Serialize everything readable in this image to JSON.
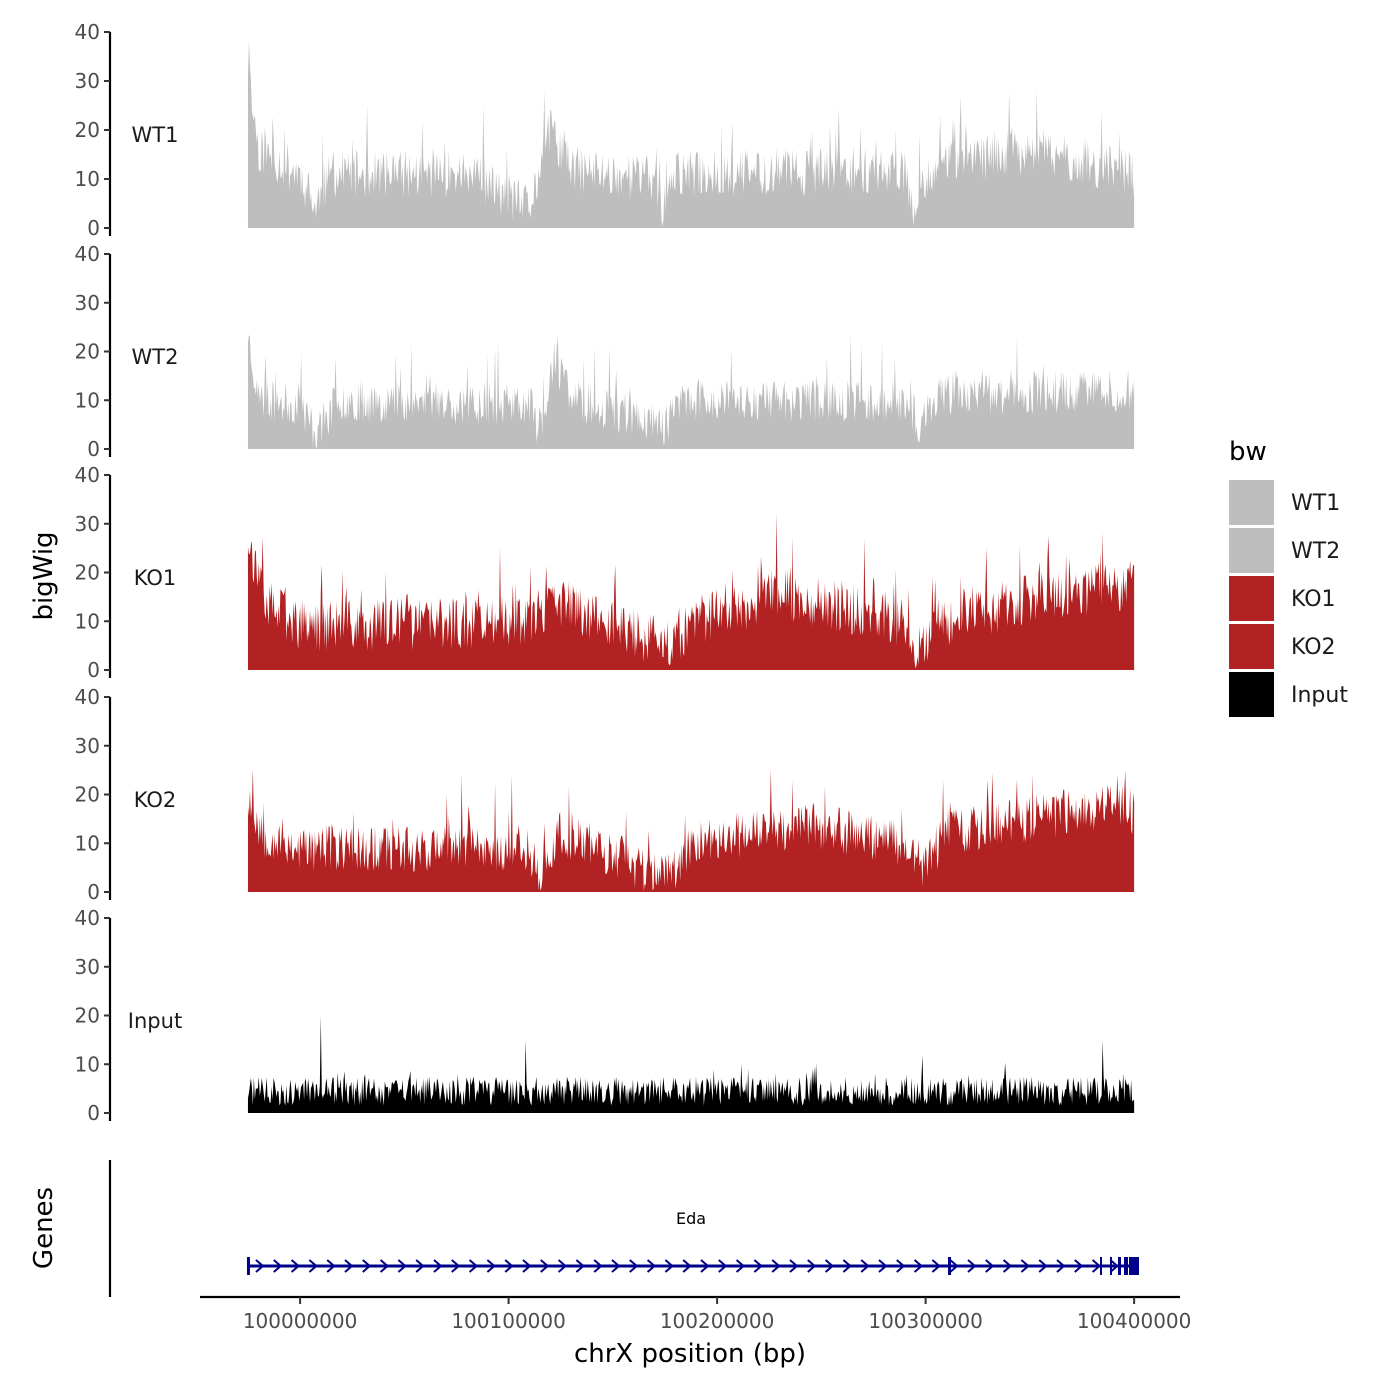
{
  "chart_data": {
    "type": "area",
    "title": "",
    "ylabel": "bigWig",
    "xlabel": "chrX position (bp)",
    "genes_ylabel": "Genes",
    "x_ticks": [
      100000000,
      100100000,
      100200000,
      100300000,
      100400000
    ],
    "x_tick_labels": [
      "100000000",
      "100100000",
      "100200000",
      "100300000",
      "100400000"
    ],
    "xlim": [
      99952000,
      100422000
    ],
    "data_xrange": [
      99975000,
      100400000
    ],
    "ylim": [
      0,
      40
    ],
    "y_ticks": [
      0,
      10,
      20,
      30,
      40
    ],
    "y_tick_labels": [
      "0",
      "10",
      "20",
      "30",
      "40"
    ],
    "legend": {
      "title": "bw",
      "placement": "right",
      "entries": [
        {
          "label": "WT1",
          "color": "#bebebe"
        },
        {
          "label": "WT2",
          "color": "#bebebe"
        },
        {
          "label": "KO1",
          "color": "#b22222"
        },
        {
          "label": "KO2",
          "color": "#b22222"
        },
        {
          "label": "Input",
          "color": "#000000"
        }
      ]
    },
    "series": [
      {
        "name": "WT1",
        "color": "#bebebe",
        "base": 11,
        "amp": 9,
        "seed": 11,
        "profile": [
          {
            "x": 99975000,
            "v": 33
          },
          {
            "x": 99980000,
            "v": 16
          },
          {
            "x": 100000000,
            "v": 11
          },
          {
            "x": 100007000,
            "v": 4
          },
          {
            "x": 100015000,
            "v": 11
          },
          {
            "x": 100080000,
            "v": 11
          },
          {
            "x": 100110000,
            "v": 4
          },
          {
            "x": 100120000,
            "v": 20
          },
          {
            "x": 100130000,
            "v": 12
          },
          {
            "x": 100170000,
            "v": 10
          },
          {
            "x": 100174000,
            "v": 4
          },
          {
            "x": 100180000,
            "v": 11
          },
          {
            "x": 100290000,
            "v": 12
          },
          {
            "x": 100295000,
            "v": 3
          },
          {
            "x": 100302000,
            "v": 12
          },
          {
            "x": 100350000,
            "v": 16
          },
          {
            "x": 100400000,
            "v": 11
          }
        ]
      },
      {
        "name": "WT2",
        "color": "#bebebe",
        "base": 10,
        "amp": 8,
        "seed": 23,
        "profile": [
          {
            "x": 99975000,
            "v": 24
          },
          {
            "x": 99980000,
            "v": 10
          },
          {
            "x": 100000000,
            "v": 9
          },
          {
            "x": 100008000,
            "v": 3
          },
          {
            "x": 100018000,
            "v": 10
          },
          {
            "x": 100110000,
            "v": 9
          },
          {
            "x": 100115000,
            "v": 4
          },
          {
            "x": 100122000,
            "v": 18
          },
          {
            "x": 100132000,
            "v": 10
          },
          {
            "x": 100175000,
            "v": 5
          },
          {
            "x": 100185000,
            "v": 10
          },
          {
            "x": 100290000,
            "v": 10
          },
          {
            "x": 100296000,
            "v": 3
          },
          {
            "x": 100305000,
            "v": 11
          },
          {
            "x": 100400000,
            "v": 12
          }
        ]
      },
      {
        "name": "KO1",
        "color": "#b22222",
        "base": 10,
        "amp": 10,
        "seed": 37,
        "profile": [
          {
            "x": 99975000,
            "v": 28
          },
          {
            "x": 99982000,
            "v": 14
          },
          {
            "x": 100000000,
            "v": 9
          },
          {
            "x": 100110000,
            "v": 10
          },
          {
            "x": 100125000,
            "v": 14
          },
          {
            "x": 100175000,
            "v": 5
          },
          {
            "x": 100190000,
            "v": 10
          },
          {
            "x": 100230000,
            "v": 16
          },
          {
            "x": 100290000,
            "v": 10
          },
          {
            "x": 100295000,
            "v": 3
          },
          {
            "x": 100305000,
            "v": 10
          },
          {
            "x": 100370000,
            "v": 16
          },
          {
            "x": 100400000,
            "v": 18
          }
        ]
      },
      {
        "name": "KO2",
        "color": "#b22222",
        "base": 10,
        "amp": 9,
        "seed": 53,
        "profile": [
          {
            "x": 99975000,
            "v": 20
          },
          {
            "x": 99982000,
            "v": 12
          },
          {
            "x": 100000000,
            "v": 9
          },
          {
            "x": 100110000,
            "v": 9
          },
          {
            "x": 100115000,
            "v": 3
          },
          {
            "x": 100125000,
            "v": 12
          },
          {
            "x": 100175000,
            "v": 3
          },
          {
            "x": 100188000,
            "v": 10
          },
          {
            "x": 100240000,
            "v": 14
          },
          {
            "x": 100290000,
            "v": 10
          },
          {
            "x": 100298000,
            "v": 5
          },
          {
            "x": 100310000,
            "v": 12
          },
          {
            "x": 100390000,
            "v": 18
          },
          {
            "x": 100400000,
            "v": 16
          }
        ]
      },
      {
        "name": "Input",
        "color": "#000000",
        "base": 4,
        "amp": 4,
        "seed": 71,
        "spikes": [
          {
            "x": 100010000,
            "v": 20
          },
          {
            "x": 100108000,
            "v": 15
          },
          {
            "x": 100385000,
            "v": 15
          }
        ],
        "profile": [
          {
            "x": 99975000,
            "v": 4
          },
          {
            "x": 100400000,
            "v": 4
          }
        ]
      }
    ],
    "gene": {
      "name": "Eda",
      "start": 99975000,
      "end": 100400000,
      "strand": "+",
      "color": "#00008b"
    }
  }
}
